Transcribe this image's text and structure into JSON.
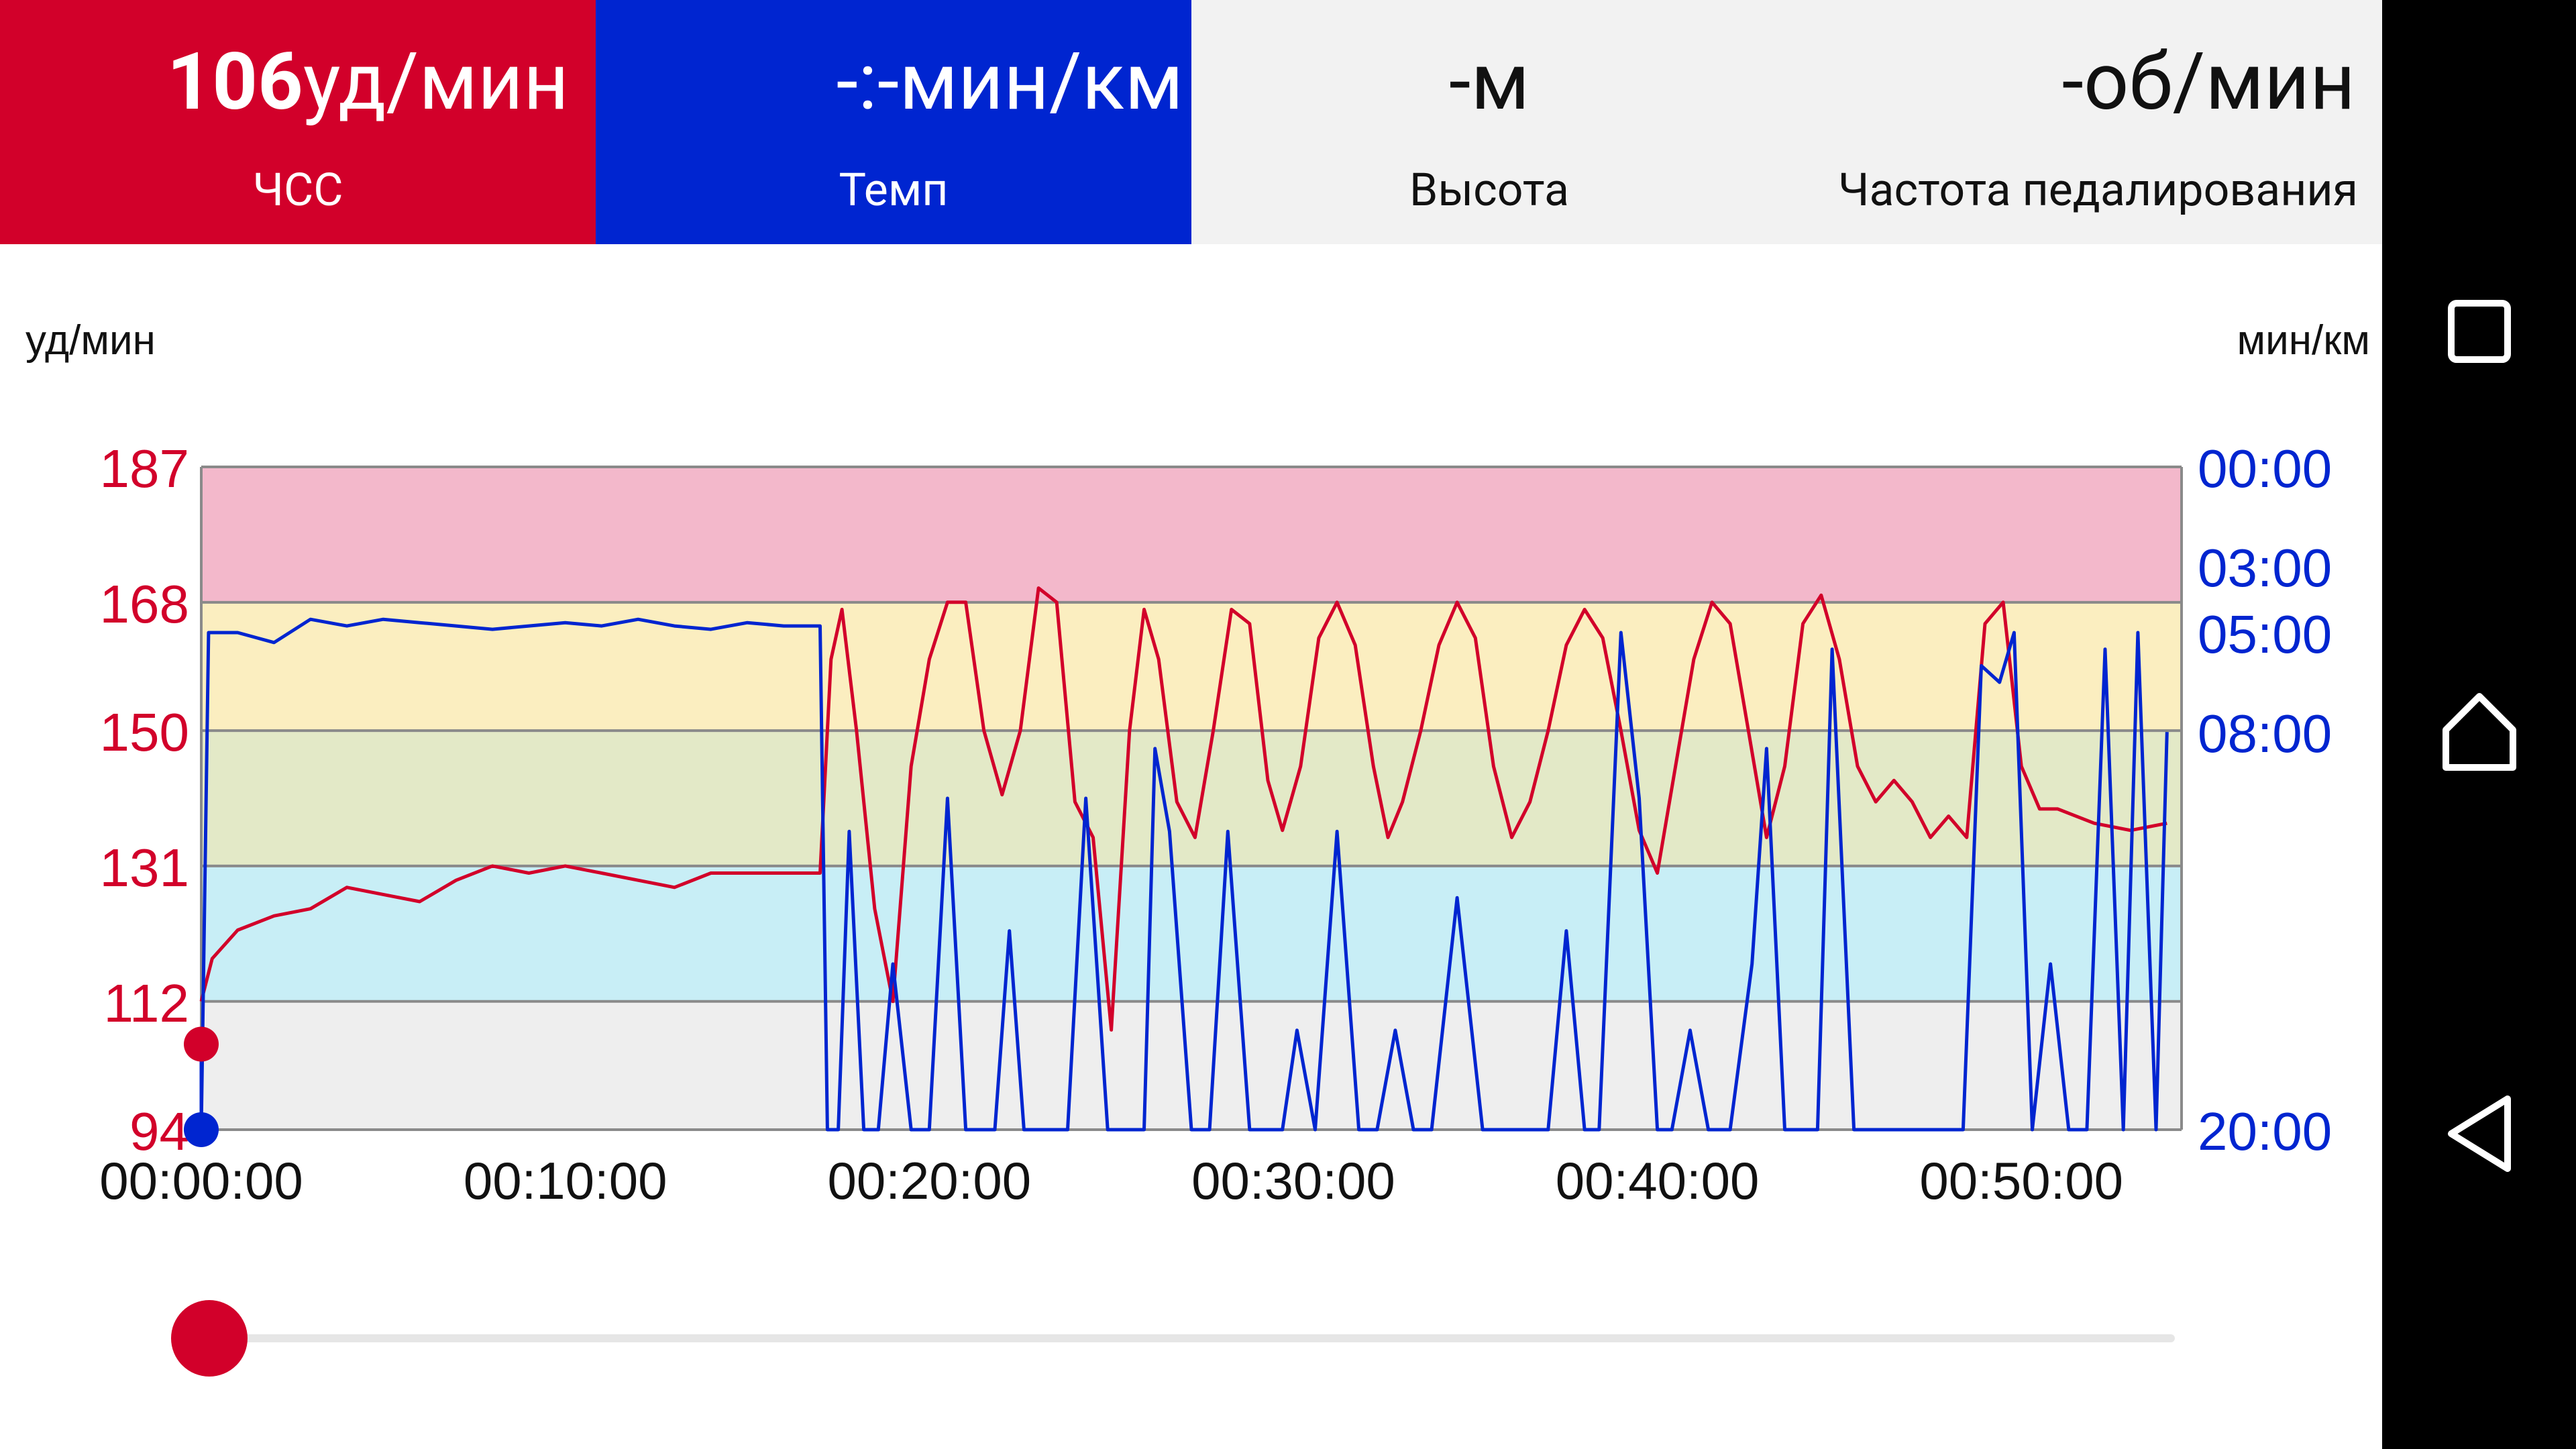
{
  "tiles": {
    "hr": {
      "value": "106",
      "unit": "уд/мин",
      "label": "ЧСС"
    },
    "pace": {
      "value": "-:-",
      "unit": "мин/км",
      "label": "Темп"
    },
    "altitude": {
      "value": "-",
      "unit": "м",
      "label": "Высота"
    },
    "cadence": {
      "value": "-",
      "unit": "об/мин",
      "label": "Частота педалирования"
    }
  },
  "colors": {
    "hr": "#d2002a",
    "pace": "#0025d0",
    "zone_red": "#f3b8cb",
    "zone_yellow": "#fbeec0",
    "zone_green": "#e3e9c7",
    "zone_blue": "#c8eef6",
    "zone_gray": "#eeeeee"
  },
  "chart_data": {
    "type": "line",
    "left_axis_label": "уд/мин",
    "right_axis_label": "мин/км",
    "left_ticks": [
      "187",
      "168",
      "150",
      "131",
      "112",
      "94"
    ],
    "right_ticks": [
      "00:00",
      "03:00",
      "05:00",
      "08:00",
      "20:00"
    ],
    "x_ticks": [
      "00:00:00",
      "00:10:00",
      "00:20:00",
      "00:30:00",
      "00:40:00",
      "00:50:00"
    ],
    "x_range_minutes": [
      0,
      54.4
    ],
    "hr_range": [
      94,
      187
    ],
    "pace_range_minutes": [
      0,
      20
    ],
    "hr_zones": [
      {
        "from": 168,
        "to": 187,
        "color": "#f3b8cb"
      },
      {
        "from": 150,
        "to": 168,
        "color": "#fbeec0"
      },
      {
        "from": 131,
        "to": 150,
        "color": "#e3e9c7"
      },
      {
        "from": 112,
        "to": 131,
        "color": "#c8eef6"
      },
      {
        "from": 94,
        "to": 112,
        "color": "#eeeeee"
      }
    ],
    "series": [
      {
        "name": "ЧСС",
        "unit": "уд/мин",
        "x": [
          0,
          0.3,
          1,
          2,
          3,
          4,
          5,
          6,
          7,
          8,
          9,
          10,
          11,
          12,
          13,
          14,
          15,
          16,
          17,
          17.3,
          17.6,
          18,
          18.5,
          19,
          19.5,
          20,
          20.5,
          21,
          21.5,
          22,
          22.5,
          23,
          23.5,
          24,
          24.5,
          25,
          25.5,
          25.9,
          26.3,
          26.8,
          27.3,
          27.8,
          28.3,
          28.8,
          29.3,
          29.7,
          30.2,
          30.7,
          31.2,
          31.7,
          32.2,
          32.6,
          33,
          33.5,
          34,
          34.5,
          35,
          35.5,
          36,
          36.5,
          37,
          37.5,
          38,
          38.5,
          39,
          39.5,
          40,
          40.5,
          41,
          41.5,
          42,
          42.5,
          43,
          43.5,
          44,
          44.5,
          45,
          45.5,
          46,
          46.5,
          47,
          47.5,
          48,
          48.5,
          49,
          49.5,
          50,
          50.5,
          51,
          51.5,
          52,
          53,
          54
        ],
        "y": [
          112,
          118,
          122,
          124,
          125,
          128,
          127,
          126,
          129,
          131,
          130,
          131,
          130,
          129,
          128,
          130,
          130,
          130,
          130,
          160,
          167,
          150,
          125,
          112,
          145,
          160,
          168,
          168,
          150,
          141,
          150,
          170,
          168,
          140,
          135,
          108,
          150,
          167,
          160,
          140,
          135,
          150,
          167,
          165,
          143,
          136,
          145,
          163,
          168,
          162,
          145,
          135,
          140,
          150,
          162,
          168,
          163,
          145,
          135,
          140,
          150,
          162,
          167,
          163,
          150,
          136,
          130,
          145,
          160,
          168,
          165,
          150,
          135,
          145,
          165,
          169,
          160,
          145,
          140,
          143,
          140,
          135,
          138,
          135,
          165,
          168,
          145,
          139,
          139,
          138,
          137,
          136,
          137
        ]
      },
      {
        "name": "Темп",
        "unit": "мин/км",
        "x": [
          0,
          0.2,
          1,
          2,
          3,
          4,
          5,
          6,
          7,
          8,
          9,
          10,
          11,
          12,
          13,
          14,
          15,
          16,
          17,
          17.2,
          17.5,
          17.8,
          18.2,
          18.6,
          19,
          19.5,
          20,
          20.5,
          21,
          21.3,
          21.8,
          22.2,
          22.6,
          23.2,
          23.8,
          24.3,
          24.9,
          25.4,
          25.9,
          26.2,
          26.6,
          27.2,
          27.7,
          28.2,
          28.8,
          29.3,
          29.7,
          30.1,
          30.6,
          31.2,
          31.8,
          32.3,
          32.8,
          33.3,
          33.8,
          34.5,
          35.2,
          35.8,
          36.4,
          37,
          37.5,
          38,
          38.4,
          39,
          39.5,
          40,
          40.4,
          40.9,
          41.4,
          42,
          42.6,
          43,
          43.5,
          44,
          44.4,
          44.8,
          45.4,
          46,
          46.6,
          47.2,
          47.8,
          48.4,
          48.9,
          49.4,
          49.8,
          50.3,
          50.8,
          51.3,
          51.8,
          52.3,
          52.8,
          53.2,
          53.7,
          54
        ],
        "y": [
          20,
          5,
          5,
          5.3,
          4.6,
          4.8,
          4.6,
          4.7,
          4.8,
          4.9,
          4.8,
          4.7,
          4.8,
          4.6,
          4.8,
          4.9,
          4.7,
          4.8,
          4.8,
          20,
          20,
          11,
          20,
          20,
          15,
          20,
          20,
          10,
          20,
          20,
          20,
          14,
          20,
          20,
          20,
          10,
          20,
          20,
          20,
          8.5,
          11,
          20,
          20,
          11,
          20,
          20,
          20,
          17,
          20,
          11,
          20,
          20,
          17,
          20,
          20,
          13,
          20,
          20,
          20,
          20,
          14,
          20,
          20,
          5,
          10,
          20,
          20,
          17,
          20,
          20,
          15,
          8.5,
          20,
          20,
          20,
          5.5,
          20,
          20,
          20,
          20,
          20,
          20,
          6,
          6.5,
          5,
          20,
          15,
          20,
          20,
          5.5,
          20,
          5,
          20,
          8
        ]
      }
    ]
  },
  "slider": {
    "position_fraction": 0.0
  },
  "navbar": {
    "recents": "recents-icon",
    "home": "home-icon",
    "back": "back-icon"
  }
}
